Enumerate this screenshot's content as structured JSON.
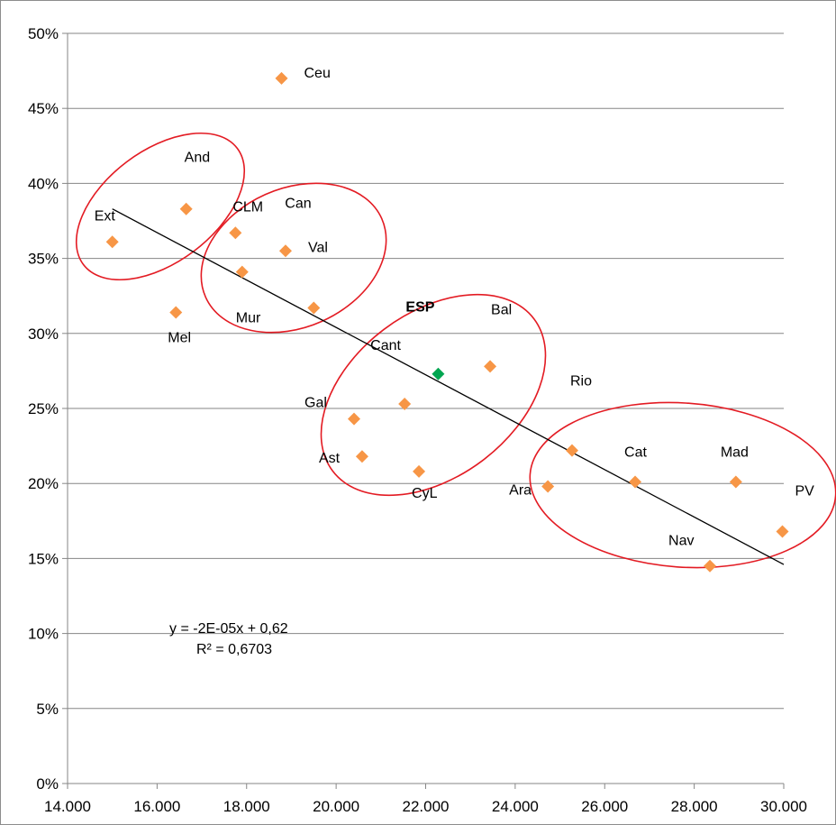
{
  "chart_data": {
    "type": "scatter",
    "title": "",
    "xlabel": "",
    "ylabel": "",
    "xlim": [
      14000,
      30000
    ],
    "ylim": [
      0,
      0.5
    ],
    "x_ticks": [
      "14.000",
      "16.000",
      "18.000",
      "20.000",
      "22.000",
      "24.000",
      "26.000",
      "28.000",
      "30.000"
    ],
    "y_ticks": [
      "0%",
      "5%",
      "10%",
      "15%",
      "20%",
      "25%",
      "30%",
      "35%",
      "40%",
      "45%",
      "50%"
    ],
    "grid": "horizontal",
    "legend": "none",
    "colors": {
      "point": "#f79646",
      "highlight": "#00a651",
      "ellipse": "#e31b23",
      "trend": "#000000",
      "grid": "#868686"
    },
    "points": [
      {
        "label": "Ext",
        "x": 15000,
        "y": 0.361
      },
      {
        "label": "Mel",
        "x": 16420,
        "y": 0.314
      },
      {
        "label": "And",
        "x": 16650,
        "y": 0.383
      },
      {
        "label": "CLM",
        "x": 17750,
        "y": 0.367
      },
      {
        "label": "Mur",
        "x": 17900,
        "y": 0.341
      },
      {
        "label": "Ceu",
        "x": 18780,
        "y": 0.47
      },
      {
        "label": "Val",
        "x": 18870,
        "y": 0.355
      },
      {
        "label": "Can",
        "x": 19500,
        "y": 0.317
      },
      {
        "label": "Gal",
        "x": 20400,
        "y": 0.243
      },
      {
        "label": "Ast",
        "x": 20580,
        "y": 0.218
      },
      {
        "label": "Cant",
        "x": 21530,
        "y": 0.253
      },
      {
        "label": "CyL",
        "x": 21850,
        "y": 0.208
      },
      {
        "label": "ESP",
        "x": 22280,
        "y": 0.273,
        "highlight": true
      },
      {
        "label": "Bal",
        "x": 23440,
        "y": 0.278
      },
      {
        "label": "Ara",
        "x": 24730,
        "y": 0.198
      },
      {
        "label": "Rio",
        "x": 25270,
        "y": 0.222
      },
      {
        "label": "Cat",
        "x": 26680,
        "y": 0.201
      },
      {
        "label": "Nav",
        "x": 28350,
        "y": 0.145
      },
      {
        "label": "Mad",
        "x": 28930,
        "y": 0.201
      },
      {
        "label": "PV",
        "x": 29970,
        "y": 0.168
      }
    ],
    "trendline": {
      "x_range": [
        15000,
        30000
      ],
      "y_range": [
        0.383,
        0.146
      ],
      "equation": "y = -2E-05x + 0,62",
      "r_squared": "R² = 0,6703"
    }
  }
}
